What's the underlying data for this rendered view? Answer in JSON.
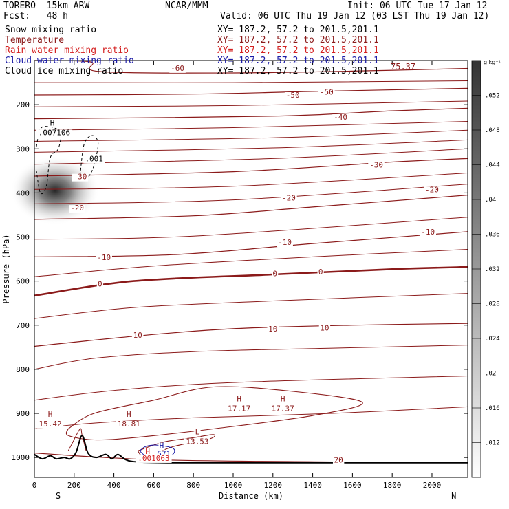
{
  "header": {
    "model": "TORERO  15km ARW",
    "center": "NCAR/MMM",
    "init": "Init: 06 UTC Tue 17 Jan 12",
    "fcst": "Fcst:   48 h",
    "valid": "Valid: 06 UTC Thu 19 Jan 12 (03 LST Thu 19 Jan 12)"
  },
  "fields": [
    {
      "name": "Snow mixing ratio",
      "xy": "XY= 187.2, 57.2 to 201.5,201.1",
      "color": "#000000"
    },
    {
      "name": "Temperature",
      "xy": "XY= 187.2, 57.2 to 201.5,201.1",
      "color": "#8b1a1a"
    },
    {
      "name": "Rain water mixing ratio",
      "xy": "XY= 187.2, 57.2 to 201.5,201.1",
      "color": "#d42020"
    },
    {
      "name": "Cloud water mixing ratio",
      "xy": "XY= 187.2, 57.2 to 201.5,201.1",
      "color": "#1a1aa6"
    },
    {
      "name": "Cloud ice mixing ratio",
      "xy": "XY= 187.2, 57.2 to 201.5,201.1",
      "color": "#000000"
    }
  ],
  "chart_data": {
    "type": "cross-section",
    "xlabel": "Distance (km)",
    "ylabel": "Pressure (hPa)",
    "xlim": [
      0,
      2180
    ],
    "ylim": [
      100,
      1045
    ],
    "x_ticks": [
      0,
      200,
      400,
      600,
      800,
      1000,
      1200,
      1400,
      1600,
      1800,
      2000
    ],
    "y_ticks": [
      200,
      300,
      400,
      500,
      600,
      700,
      800,
      900,
      1000
    ],
    "left_end": "S",
    "right_end": "N",
    "colorbar": {
      "units": "g kg⁻¹",
      "ticks": [
        ".012",
        ".016",
        ".02",
        ".024",
        ".028",
        ".032",
        ".036",
        ".04",
        ".044",
        ".048",
        ".052"
      ]
    },
    "temperature_isotherms": [
      {
        "label": "-60",
        "points": [
          [
            0,
            100
          ],
          [
            280,
            103
          ],
          [
            330,
            125
          ],
          [
            1000,
            128
          ],
          [
            1600,
            124
          ],
          [
            2180,
            118
          ]
        ],
        "label_at": [
          680,
          120
        ]
      },
      {
        "label": "-50",
        "points": [
          [
            0,
            178
          ],
          [
            800,
            176
          ],
          [
            1400,
            170
          ],
          [
            2180,
            163
          ]
        ],
        "label_at": [
          1300,
          178
        ]
      },
      {
        "label": "-40",
        "points": [
          [
            0,
            232
          ],
          [
            1200,
            226
          ],
          [
            1800,
            214
          ],
          [
            2180,
            208
          ]
        ],
        "label_at": [
          1550,
          228
        ]
      },
      {
        "label": "-30",
        "points": [
          [
            0,
            362
          ],
          [
            1000,
            352
          ],
          [
            1800,
            330
          ],
          [
            2180,
            322
          ]
        ],
        "label_at": [
          1720,
          338
        ]
      },
      {
        "label": "-20",
        "points": [
          [
            0,
            460
          ],
          [
            800,
            452
          ],
          [
            1400,
            432
          ],
          [
            2180,
            405
          ]
        ],
        "label_at": [
          1900,
          392
        ]
      },
      {
        "label": "-10",
        "points": [
          [
            0,
            545
          ],
          [
            700,
            540
          ],
          [
            1400,
            515
          ],
          [
            2180,
            488
          ]
        ],
        "label_at": [
          1900,
          498
        ]
      },
      {
        "label": "0",
        "bold": true,
        "points": [
          [
            0,
            633
          ],
          [
            500,
            600
          ],
          [
            1200,
            585
          ],
          [
            1800,
            573
          ],
          [
            2180,
            568
          ]
        ],
        "label_at": [
          1500,
          576
        ]
      },
      {
        "label": "10",
        "points": [
          [
            0,
            748
          ],
          [
            500,
            725
          ],
          [
            1000,
            708
          ],
          [
            1600,
            700
          ],
          [
            2180,
            696
          ]
        ],
        "label_at": [
          1300,
          705
        ]
      },
      {
        "label": "20",
        "points": [
          [
            0,
            990
          ],
          [
            600,
            1005
          ],
          [
            1500,
            1010
          ],
          [
            2180,
            1012
          ]
        ],
        "label_at": [
          1520,
          1008
        ]
      }
    ],
    "isotherm_labels_extra": [
      {
        "text": "-60",
        "x": 720,
        "p": 117
      },
      {
        "text": "-50",
        "x": 1300,
        "p": 178
      },
      {
        "text": "-50",
        "x": 1470,
        "p": 171
      },
      {
        "text": "-40",
        "x": 1540,
        "p": 228
      },
      {
        "text": "-30",
        "x": 1720,
        "p": 336
      },
      {
        "text": "-30",
        "x": 230,
        "p": 363
      },
      {
        "text": "-20",
        "x": 1280,
        "p": 411
      },
      {
        "text": "-20",
        "x": 2000,
        "p": 392
      },
      {
        "text": "-20",
        "x": 215,
        "p": 434
      },
      {
        "text": "-10",
        "x": 1260,
        "p": 512
      },
      {
        "text": "-10",
        "x": 1980,
        "p": 488
      },
      {
        "text": "-10",
        "x": 350,
        "p": 546
      },
      {
        "text": "0",
        "x": 1210,
        "p": 583
      },
      {
        "text": "0",
        "x": 1440,
        "p": 579
      },
      {
        "text": "0",
        "x": 330,
        "p": 606
      },
      {
        "text": "10",
        "x": 520,
        "p": 722
      },
      {
        "text": "10",
        "x": 1200,
        "p": 708
      },
      {
        "text": "10",
        "x": 1460,
        "p": 706
      },
      {
        "text": "20",
        "x": 1530,
        "p": 1005
      }
    ],
    "maxima_labels": [
      {
        "mark": "H",
        "value": "15.42",
        "x": 80,
        "p": 920
      },
      {
        "mark": "H",
        "value": "18.81",
        "x": 475,
        "p": 920
      },
      {
        "mark": "L",
        "value": "13.53",
        "x": 820,
        "p": 960
      },
      {
        "mark": "H",
        "value": "17.17",
        "x": 1030,
        "p": 885
      },
      {
        "mark": "H",
        "value": "17.37",
        "x": 1250,
        "p": 885
      }
    ],
    "cloud_water": {
      "mark": "H",
      "value": ".571",
      "x": 640,
      "p": 982
    },
    "rain_water": {
      "mark": "H",
      "value": ".001063",
      "x": 600,
      "p": 995
    },
    "cloud_ice": [
      {
        "mark": "H",
        "value": ".007106",
        "x": 100,
        "p": 263
      },
      {
        "mark": "",
        "value": ".001",
        "x": 300,
        "p": 322
      }
    ],
    "corner_value": "75.37",
    "snow_max_location": {
      "x": 90,
      "p": 395,
      "max": ".052"
    },
    "terrain_profile": [
      [
        0,
        993
      ],
      [
        40,
        1003
      ],
      [
        80,
        996
      ],
      [
        110,
        1003
      ],
      [
        150,
        1000
      ],
      [
        180,
        1003
      ],
      [
        210,
        988
      ],
      [
        240,
        950
      ],
      [
        270,
        990
      ],
      [
        310,
        1000
      ],
      [
        360,
        993
      ],
      [
        390,
        1003
      ],
      [
        420,
        993
      ],
      [
        460,
        1005
      ],
      [
        520,
        1010
      ],
      [
        700,
        1012
      ],
      [
        1200,
        1012
      ],
      [
        2180,
        1012
      ]
    ]
  }
}
